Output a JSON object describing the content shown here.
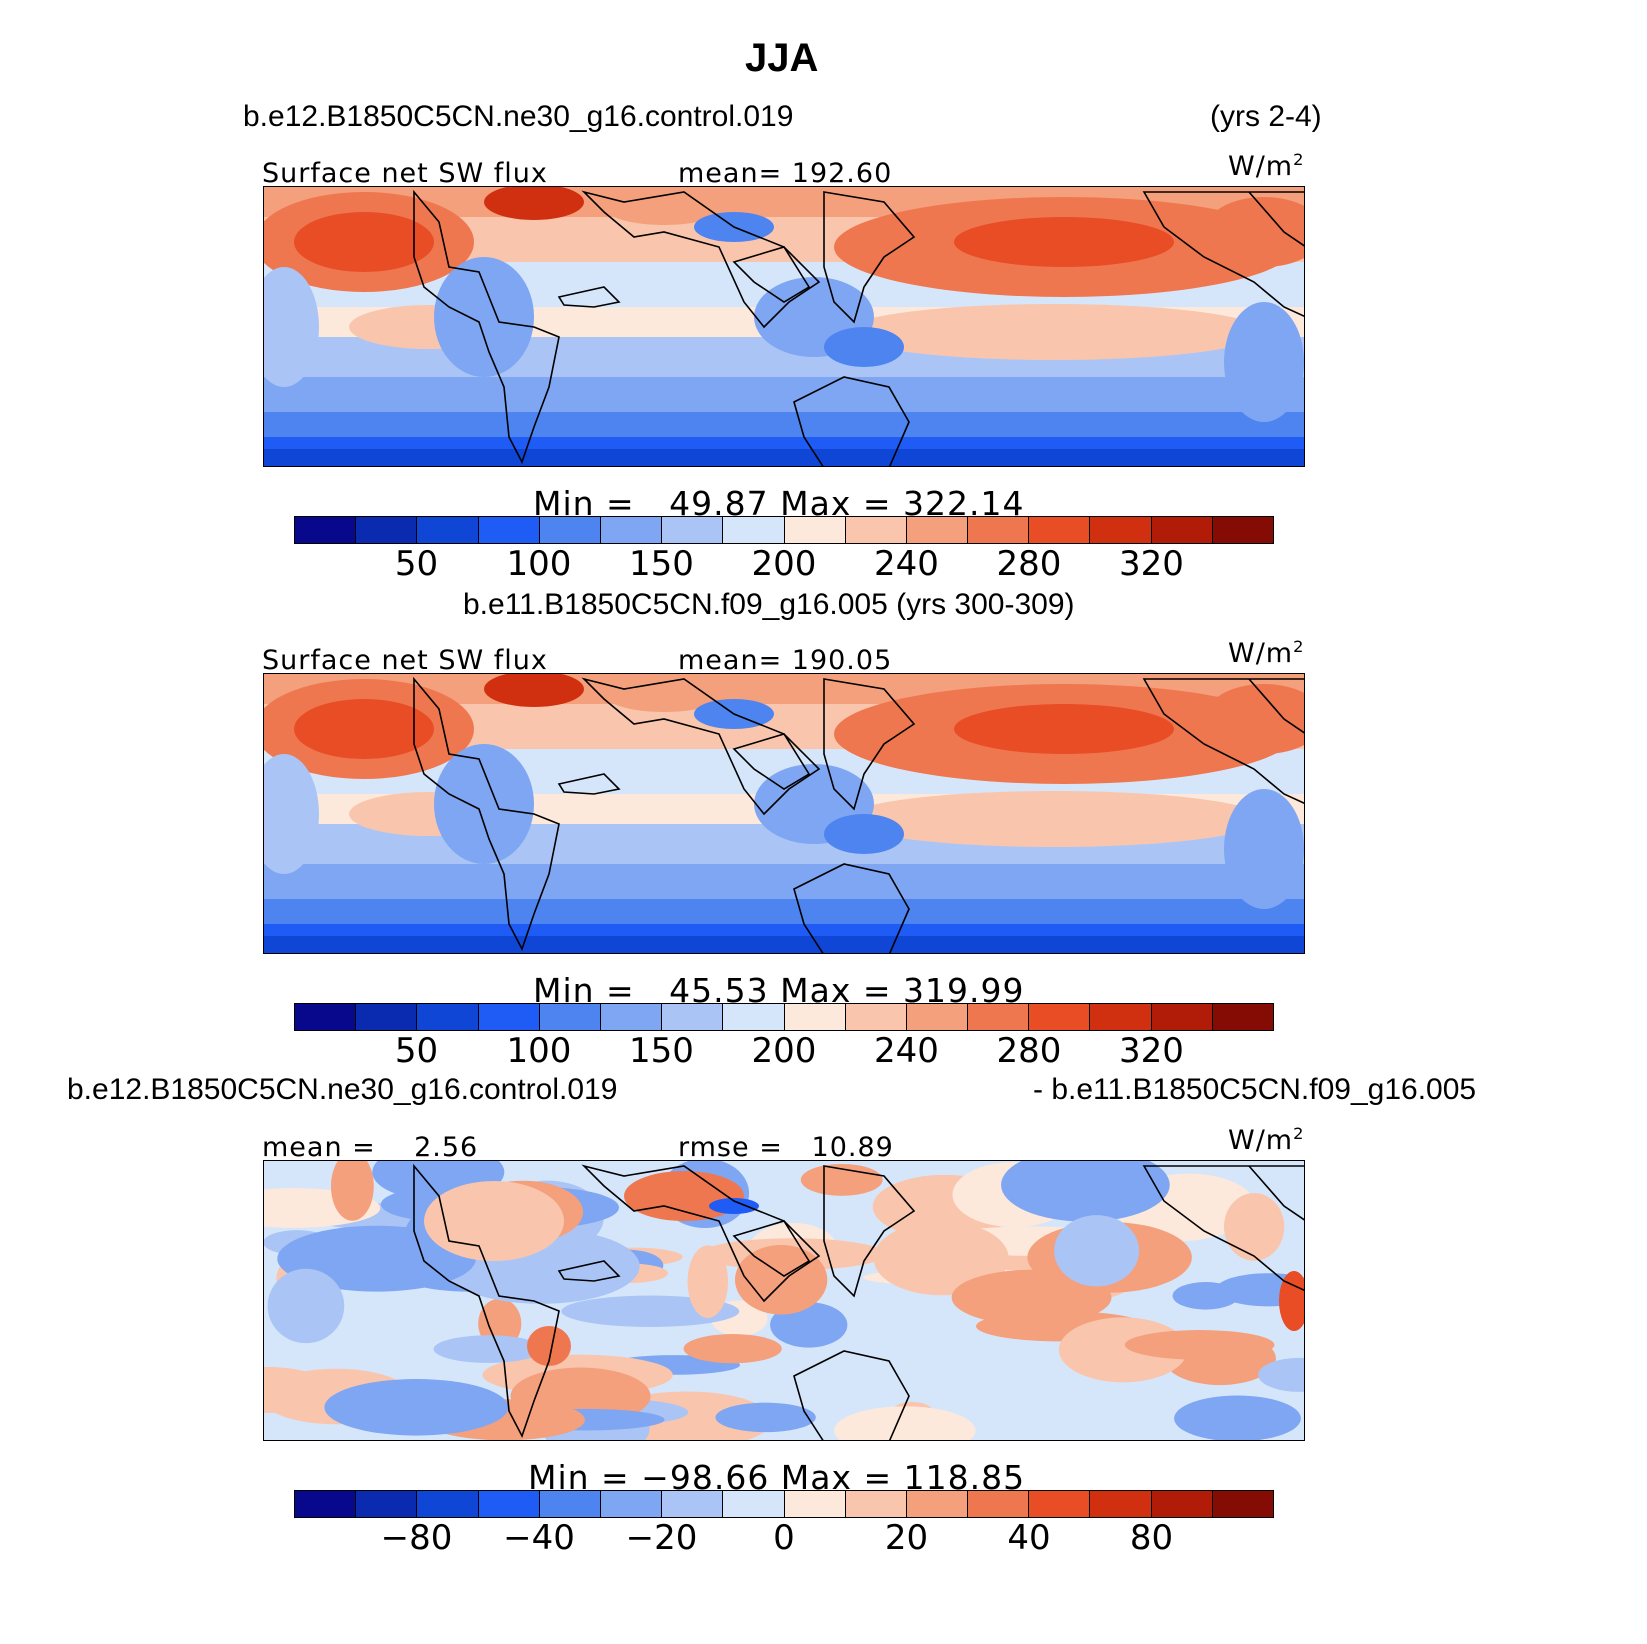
{
  "figure": {
    "title": "JJA",
    "case1_name": "b.e12.B1850C5CN.ne30_g16.control.019",
    "case1_years": "(yrs 2-4)",
    "case2_header": "b.e11.B1850C5CN.f09_g16.005 (yrs 300-309)",
    "diff_left": "b.e12.B1850C5CN.ne30_g16.control.019",
    "diff_right": "- b.e11.B1850C5CN.f09_g16.005"
  },
  "panels": [
    {
      "variable": "Surface net SW flux",
      "stat": "mean= 192.60",
      "units": "W/m",
      "units_exp": "2",
      "minmax": "Min =   49.87 Max = 322.14",
      "colorbar_ticks": [
        "50",
        "100",
        "150",
        "200",
        "240",
        "280",
        "320"
      ],
      "kind": "abs"
    },
    {
      "variable": "Surface net SW flux",
      "stat": "mean= 190.05",
      "units": "W/m",
      "units_exp": "2",
      "minmax": "Min =   45.53 Max = 319.99",
      "colorbar_ticks": [
        "50",
        "100",
        "150",
        "200",
        "240",
        "280",
        "320"
      ],
      "kind": "abs"
    },
    {
      "variable": "mean =    2.56",
      "stat": "rmse =   10.89",
      "units": "W/m",
      "units_exp": "2",
      "minmax": "Min = −98.66 Max = 118.85",
      "colorbar_ticks": [
        "−80",
        "−40",
        "−20",
        "0",
        "20",
        "40",
        "80"
      ],
      "kind": "diff"
    }
  ],
  "colorbar_colors": [
    "#08088c",
    "#0a2bb0",
    "#0f46d6",
    "#1f5cf5",
    "#4d84f0",
    "#7ea6f2",
    "#aac5f5",
    "#d6e6fa",
    "#fde9dc",
    "#f9c6ad",
    "#f4a07c",
    "#ef774f",
    "#e84d26",
    "#d0300f",
    "#b11c08",
    "#840c04"
  ]
}
